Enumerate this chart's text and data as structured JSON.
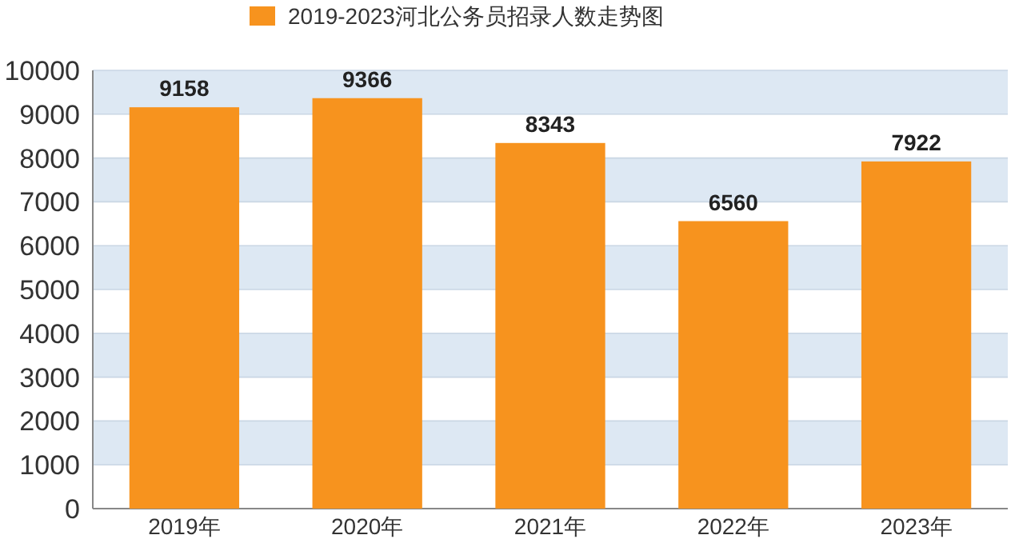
{
  "chart_data": {
    "type": "bar",
    "categories": [
      "2019年",
      "2020年",
      "2021年",
      "2022年",
      "2023年"
    ],
    "series": [
      {
        "name": "2019-2023河北公务员招录人数走势图",
        "color": "#f7931e",
        "values": [
          9158,
          9366,
          8343,
          6560,
          7922
        ]
      }
    ],
    "ylim": [
      0,
      10000
    ],
    "yticks": [
      0,
      1000,
      2000,
      3000,
      4000,
      5000,
      6000,
      7000,
      8000,
      9000,
      10000
    ],
    "grid": "y",
    "legend": "top",
    "data_labels": true
  }
}
